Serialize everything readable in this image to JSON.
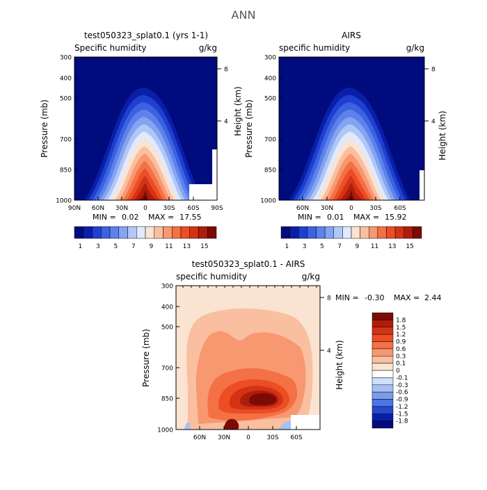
{
  "figure_title": "ANN",
  "chart_data": [
    {
      "type": "contour",
      "id": "panel1",
      "title": "test050323_splat0.1 (yrs 1-1)",
      "variable_label": "Specific humidity",
      "units": "g/kg",
      "ylabel": "Pressure (mb)",
      "y2label": "Height (km)",
      "y_ticks": [
        "300",
        "400",
        "500",
        "700",
        "850",
        "1000"
      ],
      "y2_ticks": [
        "8",
        "4"
      ],
      "x_ticks": [
        "90N",
        "60N",
        "30N",
        "0",
        "30S",
        "60S",
        "90S"
      ],
      "stats": {
        "min_label": "MIN =",
        "min": "0.02",
        "max_label": "MAX =",
        "max": "17.55"
      },
      "colorbar_labels": [
        "1",
        "3",
        "5",
        "7",
        "9",
        "11",
        "13",
        "15"
      ],
      "colors": [
        "#000b7d",
        "#0a1fa8",
        "#1e3fd0",
        "#3c62e0",
        "#5d82ec",
        "#84a4f1",
        "#b1c8f6",
        "#e0eaff",
        "#fbe3d1",
        "#f9bfa0",
        "#f79870",
        "#f47045",
        "#ec4d24",
        "#d23315",
        "#b01c0b",
        "#7b0b04"
      ]
    },
    {
      "type": "contour",
      "id": "panel2",
      "title": "AIRS",
      "variable_label": "specific humidity",
      "units": "g/kg",
      "ylabel": "Pressure (mb)",
      "y2label": "Height (km)",
      "y_ticks": [
        "300",
        "400",
        "500",
        "700",
        "850",
        "1000"
      ],
      "y2_ticks": [
        "8",
        "4"
      ],
      "x_ticks": [
        "60N",
        "30N",
        "0",
        "30S",
        "60S"
      ],
      "stats": {
        "min_label": "MIN =",
        "min": "0.01",
        "max_label": "MAX =",
        "max": "15.92"
      },
      "colorbar_labels": [
        "1",
        "3",
        "5",
        "7",
        "9",
        "11",
        "13",
        "15"
      ],
      "colors": [
        "#000b7d",
        "#0a1fa8",
        "#1e3fd0",
        "#3c62e0",
        "#5d82ec",
        "#84a4f1",
        "#b1c8f6",
        "#e0eaff",
        "#fbe3d1",
        "#f9bfa0",
        "#f79870",
        "#f47045",
        "#ec4d24",
        "#d23315",
        "#b01c0b",
        "#7b0b04"
      ]
    },
    {
      "type": "contour",
      "id": "panel3",
      "title": "test050323_splat0.1 - AIRS",
      "variable_label": "specific humidity",
      "units": "g/kg",
      "ylabel": "Pressure (mb)",
      "y2label": "Height (km)",
      "y_ticks": [
        "300",
        "400",
        "500",
        "700",
        "850",
        "1000"
      ],
      "y2_ticks": [
        "8",
        "4"
      ],
      "x_ticks": [
        "60N",
        "30N",
        "0",
        "30S",
        "60S"
      ],
      "stats": {
        "min_label": "MIN =",
        "min": "-0.30",
        "max_label": "MAX =",
        "max": "2.44"
      },
      "colorbar_labels": [
        "1.8",
        "1.5",
        "1.2",
        "0.9",
        "0.6",
        "0.3",
        "0.1",
        "0",
        "-0.1",
        "-0.3",
        "-0.6",
        "-0.9",
        "-1.2",
        "-1.5",
        "-1.8"
      ],
      "colors": [
        "#7b0b04",
        "#b01c0b",
        "#d23315",
        "#ec4d24",
        "#f47045",
        "#f79870",
        "#f9bfa0",
        "#fbe3d1",
        "#ffffff",
        "#cfe0fb",
        "#a6c0f4",
        "#7a9ced",
        "#4c74e4",
        "#2448d0",
        "#0a1fa8",
        "#000b7d"
      ]
    }
  ]
}
